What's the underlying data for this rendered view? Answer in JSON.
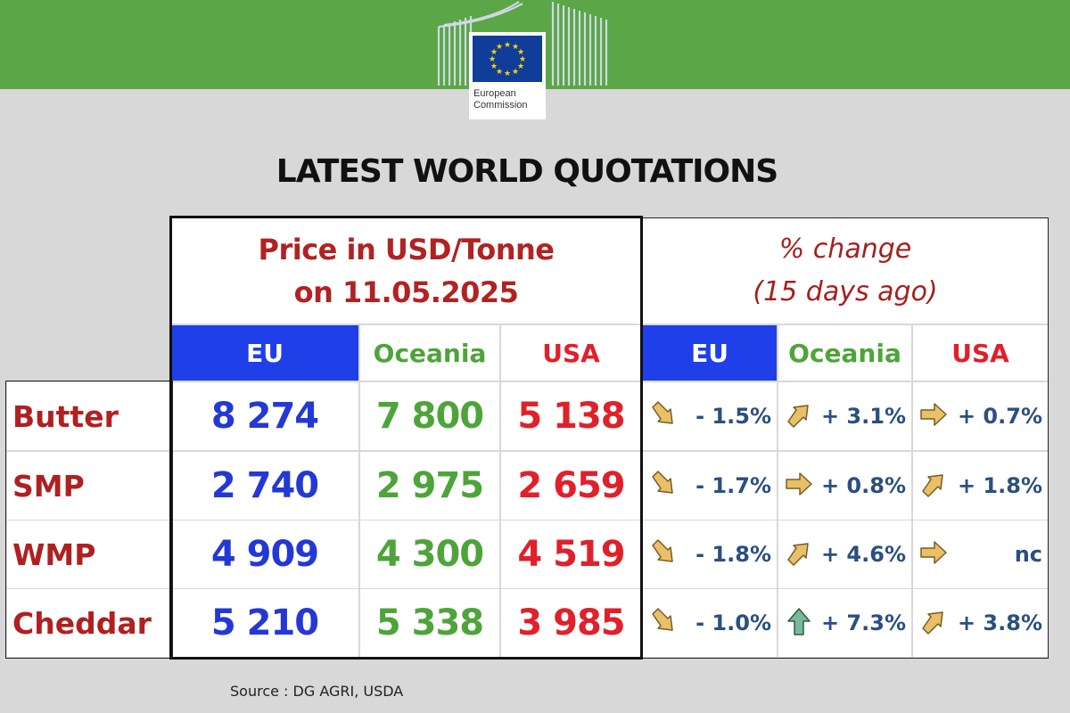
{
  "logo": {
    "line1": "European",
    "line2": "Commission"
  },
  "title": "LATEST WORLD QUOTATIONS",
  "price_header": {
    "line1": "Price in USD/Tonne",
    "line2": "on 11.05.2025"
  },
  "change_header": {
    "line1": "% change",
    "line2": "(15 days ago)"
  },
  "columns": [
    "EU",
    "Oceania",
    "USA"
  ],
  "colors": {
    "eu": "#2438d6",
    "oceania": "#4ea43a",
    "usa": "#e0202a",
    "header_green": "#5ba646",
    "label_red": "#b02020"
  },
  "rows": [
    {
      "label": "Butter",
      "prices": [
        "8 274",
        "7 800",
        "5 138"
      ],
      "changes": [
        {
          "text": "- 1.5%",
          "icon": "arrow-down-right-icon"
        },
        {
          "text": "+ 3.1%",
          "icon": "arrow-up-right-icon"
        },
        {
          "text": "+ 0.7%",
          "icon": "arrow-right-icon"
        }
      ]
    },
    {
      "label": "SMP",
      "prices": [
        "2 740",
        "2 975",
        "2 659"
      ],
      "changes": [
        {
          "text": "- 1.7%",
          "icon": "arrow-down-right-icon"
        },
        {
          "text": "+ 0.8%",
          "icon": "arrow-right-icon"
        },
        {
          "text": "+ 1.8%",
          "icon": "arrow-up-right-icon"
        }
      ]
    },
    {
      "label": "WMP",
      "prices": [
        "4 909",
        "4 300",
        "4 519"
      ],
      "changes": [
        {
          "text": "- 1.8%",
          "icon": "arrow-down-right-icon"
        },
        {
          "text": "+ 4.6%",
          "icon": "arrow-up-right-icon"
        },
        {
          "text": "nc",
          "icon": "arrow-right-icon"
        }
      ]
    },
    {
      "label": "Cheddar",
      "prices": [
        "5 210",
        "5 338",
        "3 985"
      ],
      "changes": [
        {
          "text": "- 1.0%",
          "icon": "arrow-down-right-icon"
        },
        {
          "text": "+ 7.3%",
          "icon": "arrow-up-green-icon"
        },
        {
          "text": "+ 3.8%",
          "icon": "arrow-up-right-icon"
        }
      ]
    }
  ],
  "source": "Source : DG AGRI, USDA"
}
